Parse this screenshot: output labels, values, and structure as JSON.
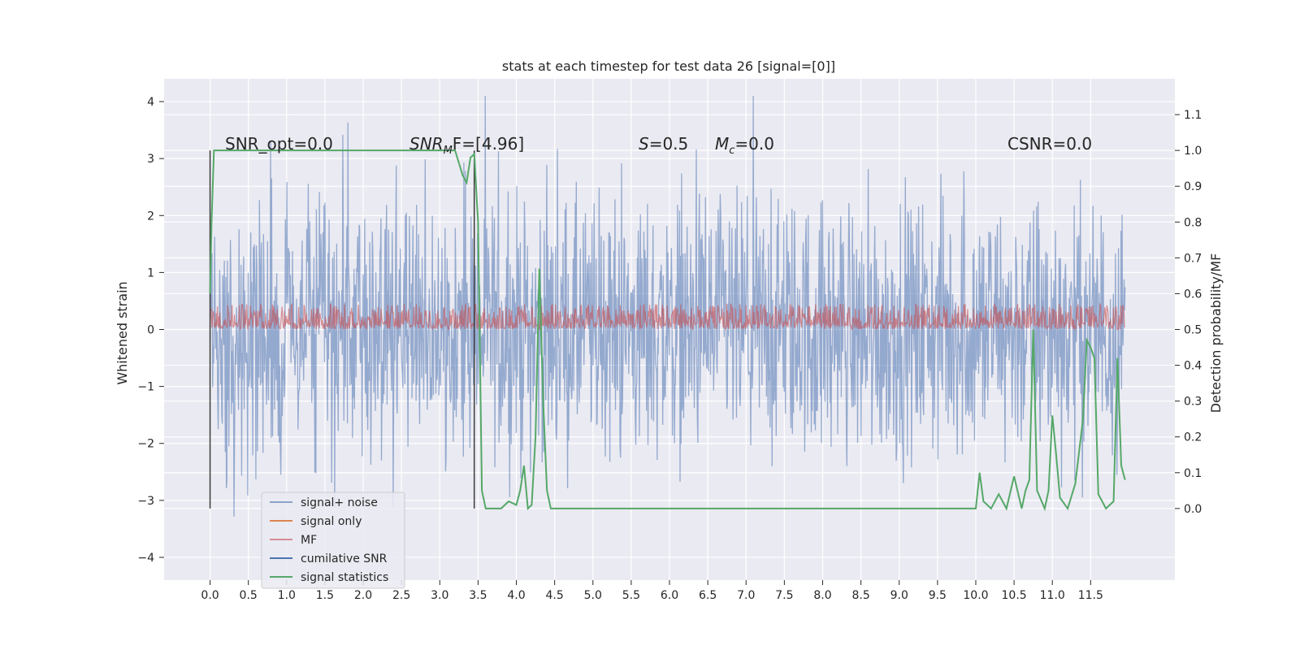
{
  "chart_data": {
    "type": "line",
    "title": "stats at each timestep for test data 26 [signal=[0]]",
    "xlabel": "",
    "ylabel_left": "Whitened strain",
    "ylabel_right": "Detection probability/MF",
    "xlim": [
      -0.6,
      12.6
    ],
    "ylim_left": [
      -4.4,
      4.4
    ],
    "ylim_right": [
      -0.2,
      1.2
    ],
    "x_ticks": [
      "0.0",
      "0.5",
      "1.0",
      "1.5",
      "2.0",
      "2.5",
      "3.0",
      "3.5",
      "4.0",
      "4.5",
      "5.0",
      "5.5",
      "6.0",
      "6.5",
      "7.0",
      "7.5",
      "8.0",
      "8.5",
      "9.0",
      "9.5",
      "10.0",
      "10.5",
      "11.0",
      "11.5"
    ],
    "y_ticks_left": [
      "−4",
      "−3",
      "−2",
      "−1",
      "0",
      "1",
      "2",
      "3",
      "4"
    ],
    "y_ticks_right": [
      "0.0",
      "0.1",
      "0.2",
      "0.3",
      "0.4",
      "0.5",
      "0.6",
      "0.7",
      "0.8",
      "0.9",
      "1.0",
      "1.1"
    ],
    "grid": true,
    "legend_position": "lower-left",
    "annotations": {
      "snr_opt": "SNR_opt=0.0",
      "snr_mf_main": "SNR",
      "snr_mf_sub": "M",
      "snr_mf_rest": "F=[4.96]",
      "s_main": "S",
      "s_rest": "=0.5",
      "mc_main": "M",
      "mc_sub": "c",
      "mc_rest": "=0.0",
      "csnr": "CSNR=0.0"
    },
    "vertical_markers": [
      0.0,
      3.45
    ],
    "series": [
      {
        "name": "signal+ noise",
        "color": "#4c72b0",
        "kind": "noise",
        "envelope": [
          -3.0,
          3.0
        ],
        "peak_min": -3.9,
        "peak_max": 4.1
      },
      {
        "name": "signal only",
        "color": "#dd8452",
        "kind": "flat",
        "value": 0.0
      },
      {
        "name": "MF",
        "color": "#c44e52",
        "kind": "band",
        "band": [
          0.0,
          0.75
        ]
      },
      {
        "name": "cumilative SNR",
        "color": "#4c72b0",
        "kind": "flat",
        "value": 0.0
      },
      {
        "name": "signal statistics",
        "color": "#55a868",
        "axis": "right",
        "x": [
          0.0,
          0.02,
          0.05,
          0.1,
          0.5,
          1.0,
          1.5,
          2.0,
          2.5,
          3.0,
          3.2,
          3.3,
          3.35,
          3.4,
          3.45,
          3.5,
          3.55,
          3.6,
          3.7,
          3.8,
          3.9,
          4.0,
          4.05,
          4.1,
          4.15,
          4.2,
          4.25,
          4.3,
          4.35,
          4.4,
          4.45,
          4.5,
          5.0,
          5.5,
          6.0,
          6.5,
          7.0,
          7.5,
          8.0,
          8.5,
          9.0,
          9.5,
          10.0,
          10.05,
          10.1,
          10.2,
          10.3,
          10.4,
          10.5,
          10.6,
          10.65,
          10.7,
          10.75,
          10.8,
          10.9,
          10.95,
          11.0,
          11.05,
          11.1,
          11.2,
          11.3,
          11.4,
          11.45,
          11.5,
          11.55,
          11.6,
          11.7,
          11.8,
          11.85,
          11.9,
          11.95
        ],
        "y": [
          0.6,
          0.8,
          1.0,
          1.0,
          1.0,
          1.0,
          1.0,
          1.0,
          1.0,
          1.0,
          1.0,
          0.93,
          0.91,
          0.98,
          0.99,
          0.8,
          0.05,
          0.0,
          0.0,
          0.0,
          0.02,
          0.01,
          0.05,
          0.12,
          0.0,
          0.01,
          0.2,
          0.67,
          0.3,
          0.05,
          0.0,
          0.0,
          0.0,
          0.0,
          0.0,
          0.0,
          0.0,
          0.0,
          0.0,
          0.0,
          0.0,
          0.0,
          0.0,
          0.1,
          0.02,
          0.0,
          0.04,
          0.0,
          0.09,
          0.0,
          0.05,
          0.08,
          0.5,
          0.05,
          0.0,
          0.05,
          0.26,
          0.15,
          0.03,
          0.0,
          0.07,
          0.25,
          0.47,
          0.45,
          0.42,
          0.04,
          0.0,
          0.02,
          0.42,
          0.12,
          0.08
        ]
      }
    ]
  }
}
